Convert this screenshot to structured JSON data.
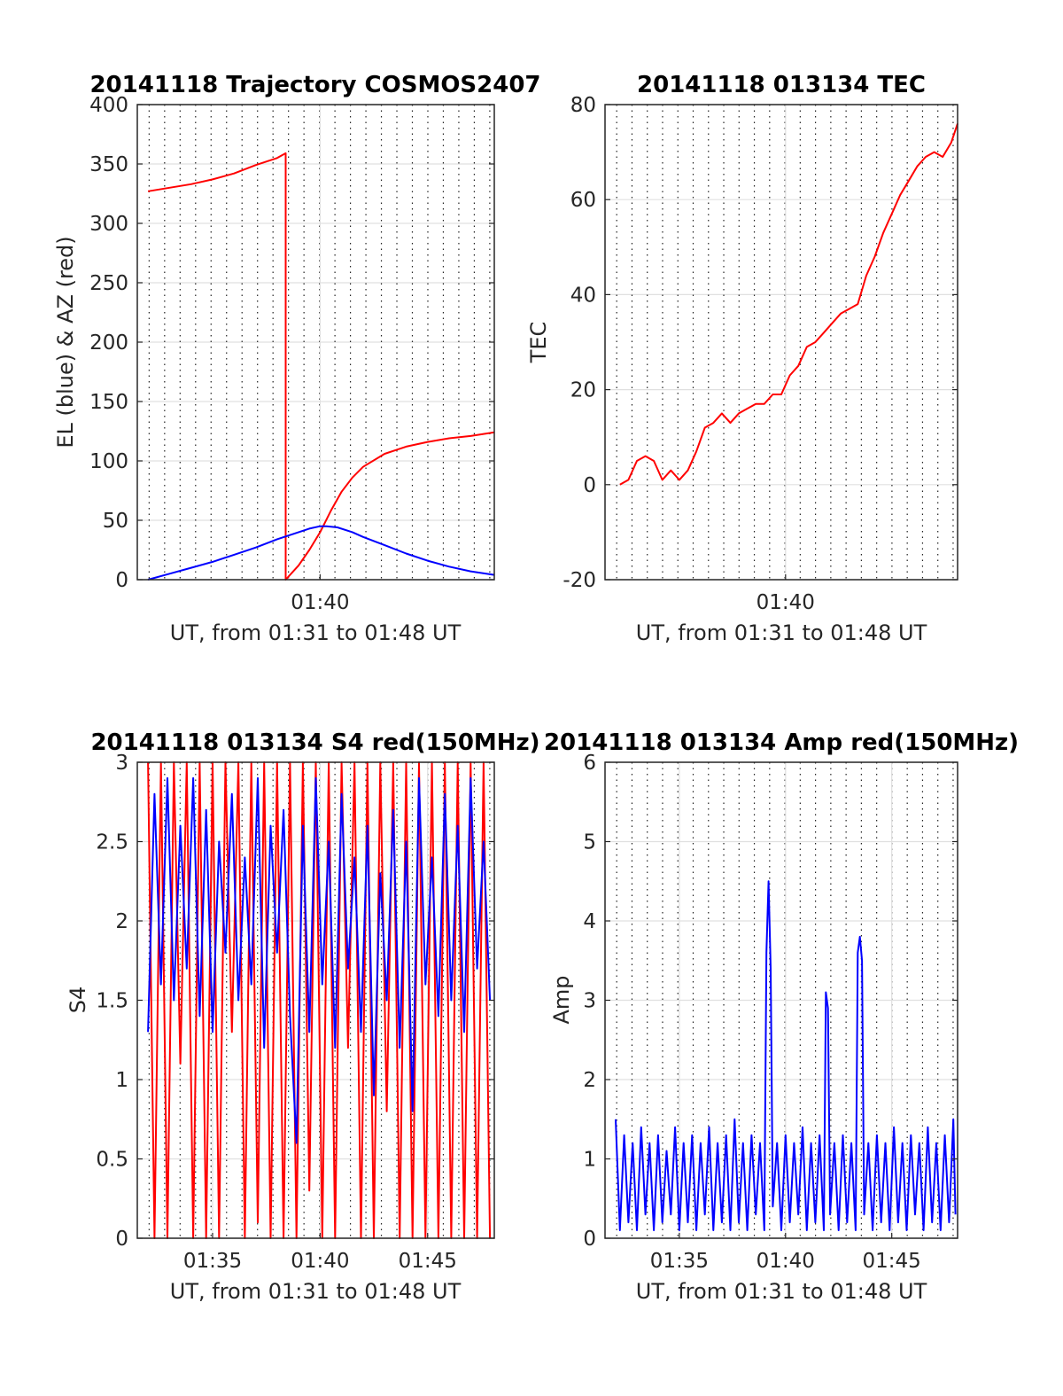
{
  "figure": {
    "background": "#ffffff",
    "grid_major_color": "#e0e0e0",
    "grid_minor_color": "#222222"
  },
  "chart_data": [
    {
      "id": "trajectory",
      "type": "line",
      "title": "20141118 Trajectory COSMOS2407",
      "xlabel": "UT, from 01:31 to 01:48 UT",
      "ylabel": "EL (blue) & AZ (red)",
      "x_units": "minutes after 01:00 UT",
      "xlim": [
        31.5,
        48.1
      ],
      "ylim": [
        0,
        400
      ],
      "yticks": [
        0,
        50,
        100,
        150,
        200,
        250,
        300,
        350,
        400
      ],
      "xticks": [
        {
          "value": 40,
          "label": "01:40"
        }
      ],
      "grid": "on",
      "series": [
        {
          "color": "#ff0000",
          "x": [
            32.0,
            33.0,
            34.0,
            35.0,
            36.0,
            37.0,
            38.0,
            38.4,
            38.4,
            39.0,
            39.5,
            40.0,
            40.5,
            41.0,
            41.5,
            42.0,
            43.0,
            44.0,
            45.0,
            46.0,
            47.0,
            48.1
          ],
          "y": [
            327,
            330,
            333,
            337,
            342,
            349,
            355,
            359,
            0,
            12,
            25,
            40,
            58,
            74,
            86,
            95,
            106,
            112,
            116,
            119,
            121,
            124
          ]
        },
        {
          "color": "#0000ff",
          "x": [
            32.0,
            33.0,
            34.0,
            35.0,
            36.0,
            37.0,
            38.0,
            39.0,
            39.5,
            40.0,
            40.3,
            40.8,
            41.5,
            42.0,
            43.0,
            44.0,
            45.0,
            46.0,
            47.0,
            48.1
          ],
          "y": [
            0,
            5,
            10,
            15,
            21,
            27,
            34,
            40,
            43,
            45,
            45,
            44,
            40,
            36,
            29,
            22,
            16,
            11,
            7,
            4
          ]
        }
      ]
    },
    {
      "id": "tec",
      "type": "line",
      "title": "20141118 013134 TEC",
      "xlabel": "UT, from 01:31 to 01:48 UT",
      "ylabel": "TEC",
      "x_units": "minutes after 01:00 UT",
      "xlim": [
        31.5,
        48.1
      ],
      "ylim": [
        -20,
        80
      ],
      "yticks": [
        -20,
        0,
        20,
        40,
        60,
        80
      ],
      "xticks": [
        {
          "value": 40,
          "label": "01:40"
        }
      ],
      "grid": "on",
      "series": [
        {
          "color": "#ff0000",
          "x": [
            32.2,
            32.6,
            33.0,
            33.4,
            33.8,
            34.2,
            34.6,
            35.0,
            35.4,
            35.8,
            36.2,
            36.6,
            37.0,
            37.4,
            37.8,
            38.2,
            38.6,
            39.0,
            39.4,
            39.8,
            40.2,
            40.6,
            41.0,
            41.4,
            41.8,
            42.2,
            42.6,
            43.0,
            43.4,
            43.8,
            44.2,
            44.6,
            45.0,
            45.4,
            45.8,
            46.2,
            46.6,
            47.0,
            47.4,
            47.8,
            48.1
          ],
          "y": [
            0,
            1,
            5,
            6,
            5,
            1,
            3,
            1,
            3,
            7,
            12,
            13,
            15,
            13,
            15,
            16,
            17,
            17,
            19,
            19,
            23,
            25,
            29,
            30,
            32,
            34,
            36,
            37,
            38,
            44,
            48,
            53,
            57,
            61,
            64,
            67,
            69,
            70,
            69,
            72,
            76
          ]
        }
      ]
    },
    {
      "id": "s4",
      "type": "line",
      "title": "20141118 013134 S4 red(150MHz)",
      "xlabel": "UT, from 01:31 to 01:48 UT",
      "ylabel": "S4",
      "x_units": "minutes after 01:00 UT",
      "xlim": [
        31.5,
        48.1
      ],
      "ylim": [
        0,
        3
      ],
      "yticks": [
        0,
        0.5,
        1,
        1.5,
        2,
        2.5,
        3
      ],
      "xticks": [
        {
          "value": 35,
          "label": "01:35"
        },
        {
          "value": 40,
          "label": "01:40"
        },
        {
          "value": 45,
          "label": "01:45"
        }
      ],
      "grid": "on",
      "series": [
        {
          "color": "#ff0000",
          "x": [
            32.0,
            32.3,
            32.6,
            32.9,
            33.2,
            33.5,
            33.8,
            34.1,
            34.4,
            34.7,
            35.0,
            35.3,
            35.6,
            35.9,
            36.2,
            36.5,
            36.8,
            37.1,
            37.4,
            37.7,
            38.0,
            38.3,
            38.6,
            38.9,
            39.2,
            39.5,
            39.8,
            40.1,
            40.4,
            40.7,
            41.0,
            41.3,
            41.6,
            41.9,
            42.2,
            42.5,
            42.8,
            43.1,
            43.4,
            43.7,
            44.0,
            44.3,
            44.6,
            44.9,
            45.2,
            45.5,
            45.8,
            46.1,
            46.4,
            46.7,
            47.0,
            47.3,
            47.6,
            47.9
          ],
          "y": [
            3,
            0,
            3,
            0,
            3,
            1.1,
            3,
            0,
            3,
            0,
            3,
            0,
            3,
            1.3,
            3,
            0,
            3,
            0.1,
            3,
            0,
            3,
            0,
            3,
            0,
            3,
            0.3,
            3,
            0,
            3,
            0,
            3,
            1.2,
            3,
            0,
            3,
            0,
            3,
            0.8,
            3,
            0,
            3,
            0,
            3,
            0,
            3,
            0,
            3,
            0,
            3,
            0,
            3,
            0,
            3,
            0
          ]
        },
        {
          "color": "#0000ff",
          "x": [
            32.0,
            32.3,
            32.6,
            32.9,
            33.2,
            33.5,
            33.8,
            34.1,
            34.4,
            34.7,
            35.0,
            35.3,
            35.6,
            35.9,
            36.2,
            36.5,
            36.8,
            37.1,
            37.4,
            37.7,
            38.0,
            38.3,
            38.6,
            38.9,
            39.2,
            39.5,
            39.8,
            40.1,
            40.4,
            40.7,
            41.0,
            41.3,
            41.6,
            41.9,
            42.2,
            42.5,
            42.8,
            43.1,
            43.4,
            43.7,
            44.0,
            44.3,
            44.6,
            44.9,
            45.2,
            45.5,
            45.8,
            46.1,
            46.4,
            46.7,
            47.0,
            47.3,
            47.6,
            47.9
          ],
          "y": [
            1.3,
            2.8,
            1.6,
            2.9,
            1.5,
            2.6,
            1.7,
            2.9,
            1.4,
            2.7,
            1.3,
            2.5,
            1.8,
            2.8,
            1.5,
            2.4,
            1.6,
            2.9,
            1.2,
            2.6,
            1.8,
            2.7,
            1.4,
            0.6,
            2.6,
            1.3,
            2.9,
            1.6,
            2.5,
            1.2,
            2.8,
            1.7,
            2.4,
            1.3,
            2.6,
            0.9,
            2.3,
            1.5,
            2.7,
            1.2,
            2.5,
            0.8,
            2.9,
            1.6,
            2.4,
            1.4,
            2.8,
            1.5,
            2.6,
            1.3,
            2.9,
            1.7,
            2.5,
            1.5
          ]
        }
      ]
    },
    {
      "id": "amp",
      "type": "line",
      "title": "20141118 013134 Amp red(150MHz)",
      "xlabel": "UT, from 01:31 to 01:48 UT",
      "ylabel": "Amp",
      "x_units": "minutes after 01:00 UT",
      "xlim": [
        31.5,
        48.1
      ],
      "ylim": [
        0,
        6
      ],
      "yticks": [
        0,
        1,
        2,
        3,
        4,
        5,
        6
      ],
      "xticks": [
        {
          "value": 35,
          "label": "01:35"
        },
        {
          "value": 40,
          "label": "01:40"
        },
        {
          "value": 45,
          "label": "01:45"
        }
      ],
      "grid": "on",
      "series": [
        {
          "color": "#0000ff",
          "x": [
            32.0,
            32.2,
            32.4,
            32.6,
            32.8,
            33.0,
            33.2,
            33.4,
            33.6,
            33.8,
            34.0,
            34.2,
            34.4,
            34.6,
            34.8,
            35.0,
            35.2,
            35.4,
            35.6,
            35.8,
            36.0,
            36.2,
            36.4,
            36.6,
            36.8,
            37.0,
            37.2,
            37.4,
            37.6,
            37.8,
            38.0,
            38.2,
            38.4,
            38.6,
            38.8,
            39.0,
            39.1,
            39.2,
            39.3,
            39.4,
            39.6,
            39.8,
            40.0,
            40.2,
            40.4,
            40.6,
            40.8,
            41.0,
            41.2,
            41.4,
            41.6,
            41.8,
            41.9,
            42.0,
            42.1,
            42.3,
            42.5,
            42.7,
            42.9,
            43.1,
            43.3,
            43.4,
            43.5,
            43.6,
            43.7,
            43.9,
            44.1,
            44.3,
            44.5,
            44.7,
            44.9,
            45.1,
            45.3,
            45.5,
            45.7,
            45.9,
            46.1,
            46.3,
            46.5,
            46.7,
            46.9,
            47.1,
            47.3,
            47.5,
            47.7,
            47.9,
            48.0
          ],
          "y": [
            1.5,
            0.1,
            1.3,
            0.2,
            1.2,
            0.1,
            1.4,
            0.3,
            1.2,
            0.1,
            1.3,
            0.2,
            1.1,
            0.3,
            1.4,
            0.1,
            1.2,
            0.2,
            1.3,
            0.1,
            1.2,
            0.3,
            1.4,
            0.1,
            1.2,
            0.2,
            1.3,
            0.1,
            1.5,
            0.2,
            1.2,
            0.1,
            1.3,
            0.3,
            1.2,
            0.1,
            3.6,
            4.5,
            3.4,
            0.4,
            1.2,
            0.1,
            1.3,
            0.2,
            1.2,
            0.3,
            1.4,
            0.1,
            1.2,
            0.2,
            1.3,
            0.1,
            3.1,
            2.9,
            0.3,
            1.2,
            0.1,
            1.3,
            0.2,
            1.2,
            0.1,
            3.6,
            3.8,
            3.5,
            0.3,
            1.2,
            0.1,
            1.3,
            0.2,
            1.2,
            0.1,
            1.4,
            0.2,
            1.2,
            0.1,
            1.3,
            0.3,
            1.2,
            0.1,
            1.4,
            0.2,
            1.2,
            0.1,
            1.3,
            0.2,
            1.5,
            0.3
          ]
        }
      ]
    }
  ]
}
